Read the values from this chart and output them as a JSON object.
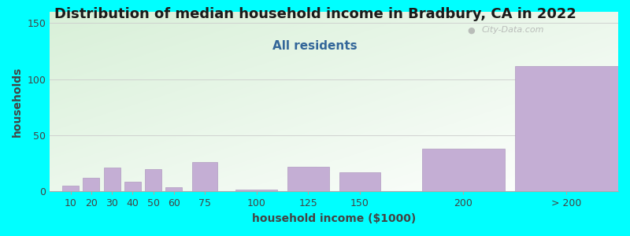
{
  "title": "Distribution of median household income in Bradbury, CA in 2022",
  "subtitle": "All residents",
  "xlabel": "household income ($1000)",
  "ylabel": "households",
  "background_color": "#00ffff",
  "plot_bg_top": "#f5fff5",
  "plot_bg_bottom": "#d8f0d8",
  "bar_color": "#c4aed4",
  "bar_edge_color": "#b09ac0",
  "categories": [
    "10",
    "20",
    "30",
    "40",
    "50",
    "60",
    "75",
    "100",
    "125",
    "150",
    "200",
    "> 200"
  ],
  "values": [
    5,
    12,
    21,
    9,
    20,
    4,
    26,
    2,
    22,
    17,
    38,
    112
  ],
  "ylim": [
    0,
    160
  ],
  "yticks": [
    0,
    50,
    100,
    150
  ],
  "title_fontsize": 13,
  "subtitle_fontsize": 11,
  "axis_label_fontsize": 10,
  "tick_fontsize": 9,
  "watermark": "City-Data.com"
}
